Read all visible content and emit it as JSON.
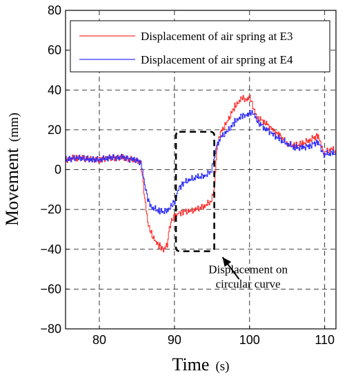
{
  "chart_data": {
    "type": "line",
    "xlabel": "Time",
    "xlabel_unit": "(s)",
    "ylabel": "Movement",
    "ylabel_unit": "(mm)",
    "xlim": [
      75.5,
      111.5
    ],
    "ylim": [
      -80,
      80
    ],
    "xticks": [
      80,
      90,
      100,
      110
    ],
    "yticks": [
      -80,
      -60,
      -40,
      -20,
      0,
      20,
      40,
      60,
      80
    ],
    "grid": true,
    "legend_position": "top-right",
    "series": [
      {
        "name": "Displacement of air spring at E3",
        "color": "#ff3333",
        "x": [
          75.5,
          77,
          79,
          80,
          81,
          83,
          84.5,
          85.5,
          86,
          86.5,
          87,
          87.5,
          88,
          88.5,
          89,
          89.3,
          89.6,
          90,
          90.5,
          91,
          92,
          93,
          94,
          94.8,
          95.2,
          95.6,
          96,
          97,
          98,
          98.5,
          99,
          99.5,
          100,
          100.5,
          101,
          102,
          103,
          104,
          105,
          106,
          107,
          108,
          109,
          109.6,
          109.8,
          110,
          111,
          111.5
        ],
        "y": [
          5,
          6,
          5,
          5,
          6,
          6,
          5,
          4,
          -15,
          -28,
          -33,
          -37,
          -38,
          -40,
          -38,
          -30,
          -25,
          -24,
          -22,
          -21,
          -21,
          -20,
          -18,
          -16,
          -12,
          10,
          18,
          24,
          32,
          34,
          36,
          35,
          37,
          30,
          26,
          24,
          20,
          17,
          13,
          12,
          13,
          15,
          17,
          12,
          7,
          9,
          10,
          9
        ]
      },
      {
        "name": "Displacement of air spring at E4",
        "color": "#3333ff",
        "x": [
          75.5,
          77,
          79,
          80,
          81,
          83,
          84.5,
          85.5,
          86,
          86.5,
          87,
          88,
          89,
          89.5,
          90,
          90.5,
          91,
          92,
          93,
          94,
          94.8,
          95.2,
          95.6,
          96,
          97,
          98,
          98.5,
          99,
          99.5,
          100,
          100.5,
          101,
          102,
          103,
          104,
          105,
          106,
          107,
          108,
          109,
          109.6,
          109.8,
          110,
          111,
          111.5
        ],
        "y": [
          5,
          6,
          5,
          5,
          6,
          6,
          5,
          4,
          -8,
          -16,
          -19,
          -21,
          -21,
          -18,
          -16,
          -10,
          -7,
          -5,
          -4,
          -3,
          -1,
          4,
          12,
          16,
          19,
          24,
          26,
          27,
          27,
          29,
          28,
          24,
          21,
          18,
          15,
          13,
          11,
          11,
          12,
          14,
          10,
          7,
          8,
          8,
          8
        ]
      }
    ],
    "annotation": {
      "line1": "Displacement on",
      "line2": "circular curve",
      "box_x": [
        90.2,
        95.3
      ],
      "box_y": [
        -41,
        19
      ],
      "arrow_tip": [
        96.4,
        -44
      ],
      "arrow_tail": [
        98.6,
        -55
      ],
      "text_at": [
        99.8,
        -52
      ]
    }
  }
}
